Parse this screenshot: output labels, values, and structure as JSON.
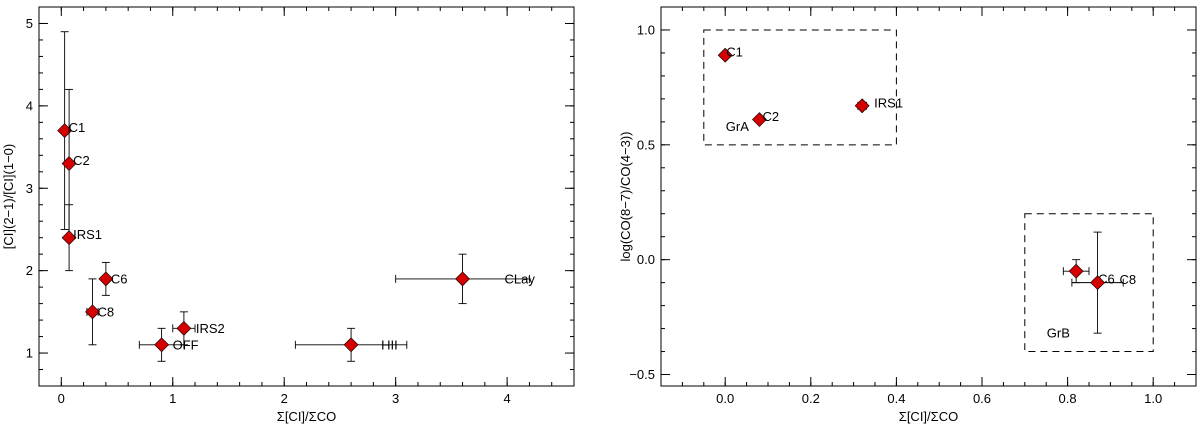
{
  "colors": {
    "marker": "#d40000",
    "marker_edge": "#000000",
    "axis": "#000000"
  },
  "chart_data": [
    {
      "type": "scatter",
      "title": "",
      "xlabel": "Σ[CI]/ΣCO",
      "ylabel": "[CI](2−1)/[CI](1−0)",
      "xlim": [
        -0.2,
        4.6
      ],
      "ylim": [
        0.6,
        5.2
      ],
      "xticks": [
        0,
        1,
        2,
        3,
        4
      ],
      "xticklabels": [
        "0",
        "1",
        "2",
        "3",
        "4"
      ],
      "yticks": [
        1,
        2,
        3,
        4,
        5
      ],
      "yticklabels": [
        "1",
        "2",
        "3",
        "4",
        "5"
      ],
      "xminor": 0.2,
      "yminor": 0.2,
      "points": [
        {
          "label": "C1",
          "x": 0.03,
          "y": 3.7,
          "xerr": 0,
          "yerr": 1.2
        },
        {
          "label": "C2",
          "x": 0.07,
          "y": 3.3,
          "xerr": 0,
          "yerr": 0.9
        },
        {
          "label": "IRS1",
          "x": 0.07,
          "y": 2.4,
          "xerr": 0,
          "yerr": 0.4
        },
        {
          "label": "C6",
          "x": 0.4,
          "y": 1.9,
          "xerr": 0,
          "yerr": 0.2
        },
        {
          "label": "C8",
          "x": 0.28,
          "y": 1.5,
          "xerr": 0.05,
          "yerr": 0.4
        },
        {
          "label": "IRS2",
          "x": 1.1,
          "y": 1.3,
          "xerr": 0.1,
          "yerr": 0.2
        },
        {
          "label": "OFF",
          "x": 0.9,
          "y": 1.1,
          "xerr": 0.2,
          "yerr": 0.2
        },
        {
          "label": "HII",
          "x": 2.6,
          "y": 1.1,
          "xerr": 0.5,
          "yerr": 0.2
        },
        {
          "label": "CLay",
          "x": 3.6,
          "y": 1.9,
          "xerr": 0.6,
          "yerr": 0.3
        }
      ]
    },
    {
      "type": "scatter",
      "title": "",
      "xlabel": "Σ[CI]/ΣCO",
      "ylabel": "log(CO(8−7)/CO(4−3))",
      "xlim": [
        -0.15,
        1.1
      ],
      "ylim": [
        -0.55,
        1.1
      ],
      "xticks": [
        0,
        0.2,
        0.4,
        0.6,
        0.8,
        1.0
      ],
      "xticklabels": [
        "0.0",
        "0.2",
        "0.4",
        "0.6",
        "0.8",
        "1.0"
      ],
      "yticks": [
        -0.5,
        0,
        0.5,
        1.0
      ],
      "yticklabels": [
        "−0.5",
        "0.0",
        "0.5",
        "1.0"
      ],
      "xminor": 0.05,
      "yminor": 0.1,
      "points": [
        {
          "label": "C1",
          "x": 0.0,
          "y": 0.89,
          "xerr": 0,
          "yerr": 0
        },
        {
          "label": "C2",
          "x": 0.08,
          "y": 0.61,
          "xerr": 0,
          "yerr": 0
        },
        {
          "label": "IRS1",
          "x": 0.32,
          "y": 0.67,
          "xerr": 0.01,
          "yerr": 0
        },
        {
          "label": "C6",
          "x": 0.82,
          "y": -0.05,
          "xerr": 0.03,
          "yerr": 0.05
        },
        {
          "label": "C8",
          "x": 0.87,
          "y": -0.1,
          "xerr": 0.06,
          "yerr": 0.22
        }
      ],
      "groups": [
        {
          "label": "GrA",
          "x0": -0.05,
          "x1": 0.4,
          "y0": 0.5,
          "y1": 1.0
        },
        {
          "label": "GrB",
          "x0": 0.7,
          "x1": 1.0,
          "y0": -0.4,
          "y1": 0.2
        }
      ]
    }
  ]
}
